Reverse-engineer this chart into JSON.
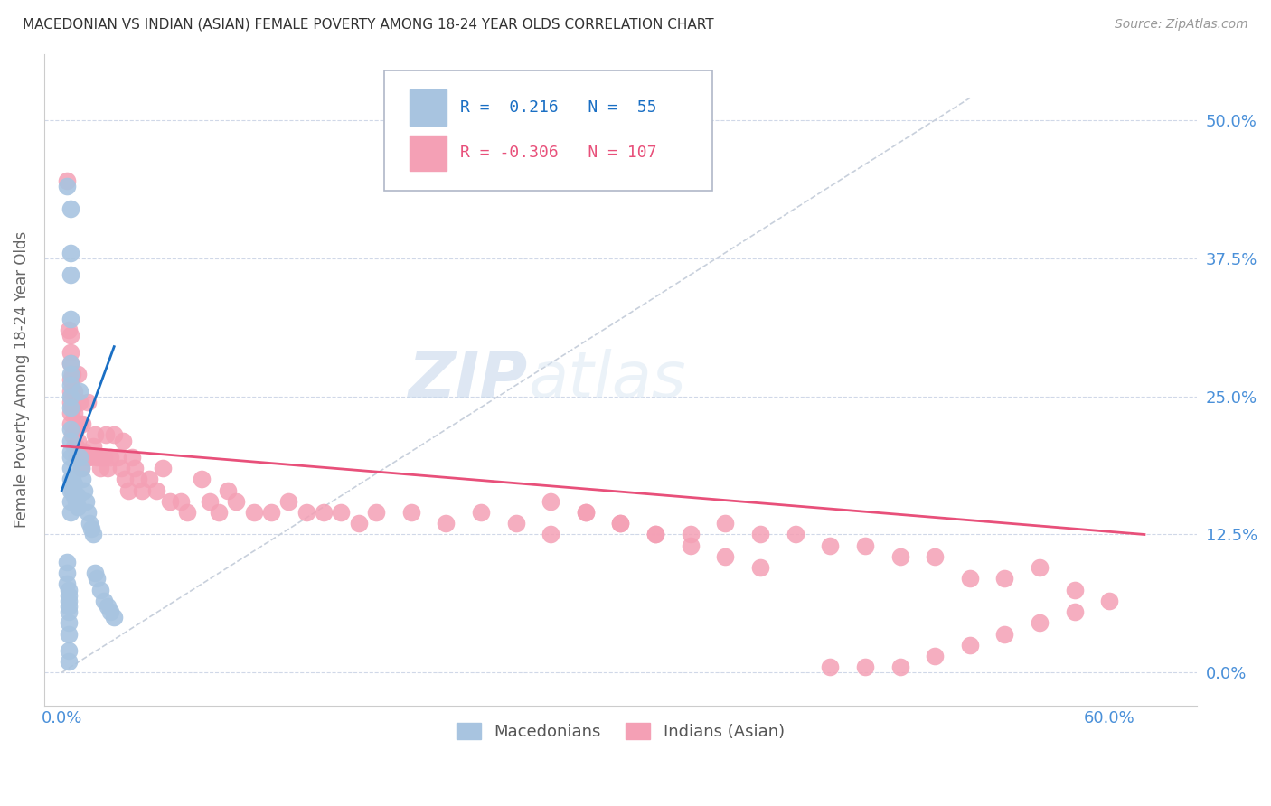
{
  "title": "MACEDONIAN VS INDIAN (ASIAN) FEMALE POVERTY AMONG 18-24 YEAR OLDS CORRELATION CHART",
  "source": "Source: ZipAtlas.com",
  "xlabel_ticks": [
    "0.0%",
    "60.0%"
  ],
  "xlabel_tick_vals": [
    0.0,
    0.6
  ],
  "ylabel_ticks": [
    "0.0%",
    "12.5%",
    "25.0%",
    "37.5%",
    "50.0%"
  ],
  "ylabel_tick_vals": [
    0.0,
    0.125,
    0.25,
    0.375,
    0.5
  ],
  "xlim": [
    -0.01,
    0.65
  ],
  "ylim": [
    -0.03,
    0.56
  ],
  "ylabel": "Female Poverty Among 18-24 Year Olds",
  "legend1_label": "Macedonians",
  "legend2_label": "Indians (Asian)",
  "r1": 0.216,
  "n1": 55,
  "r2": -0.306,
  "n2": 107,
  "color_mac": "#a8c4e0",
  "color_ind": "#f4a0b5",
  "trendline_mac_color": "#1a6fc4",
  "trendline_ind_color": "#e8507a",
  "diagonal_color": "#c8d0dc",
  "watermark_zip": "ZIP",
  "watermark_atlas": "atlas",
  "mac_x": [
    0.003,
    0.005,
    0.005,
    0.005,
    0.005,
    0.005,
    0.005,
    0.005,
    0.005,
    0.005,
    0.005,
    0.005,
    0.005,
    0.005,
    0.005,
    0.005,
    0.005,
    0.005,
    0.005,
    0.006,
    0.006,
    0.007,
    0.007,
    0.008,
    0.009,
    0.009,
    0.01,
    0.01,
    0.011,
    0.012,
    0.013,
    0.014,
    0.015,
    0.016,
    0.017,
    0.018,
    0.019,
    0.02,
    0.022,
    0.024,
    0.026,
    0.028,
    0.03,
    0.003,
    0.003,
    0.003,
    0.004,
    0.004,
    0.004,
    0.004,
    0.004,
    0.004,
    0.004,
    0.004,
    0.004
  ],
  "mac_y": [
    0.44,
    0.42,
    0.38,
    0.36,
    0.32,
    0.28,
    0.27,
    0.26,
    0.25,
    0.24,
    0.22,
    0.21,
    0.2,
    0.195,
    0.185,
    0.175,
    0.165,
    0.155,
    0.145,
    0.175,
    0.165,
    0.17,
    0.16,
    0.155,
    0.16,
    0.15,
    0.255,
    0.195,
    0.185,
    0.175,
    0.165,
    0.155,
    0.145,
    0.135,
    0.13,
    0.125,
    0.09,
    0.085,
    0.075,
    0.065,
    0.06,
    0.055,
    0.05,
    0.1,
    0.09,
    0.08,
    0.075,
    0.07,
    0.065,
    0.06,
    0.055,
    0.045,
    0.035,
    0.02,
    0.01
  ],
  "ind_x": [
    0.003,
    0.004,
    0.005,
    0.005,
    0.005,
    0.005,
    0.005,
    0.005,
    0.005,
    0.005,
    0.006,
    0.006,
    0.006,
    0.007,
    0.007,
    0.007,
    0.008,
    0.008,
    0.008,
    0.009,
    0.009,
    0.01,
    0.01,
    0.01,
    0.011,
    0.012,
    0.012,
    0.013,
    0.014,
    0.015,
    0.015,
    0.016,
    0.018,
    0.019,
    0.02,
    0.022,
    0.022,
    0.024,
    0.025,
    0.026,
    0.028,
    0.03,
    0.032,
    0.034,
    0.035,
    0.036,
    0.038,
    0.04,
    0.042,
    0.044,
    0.046,
    0.05,
    0.054,
    0.058,
    0.062,
    0.068,
    0.072,
    0.08,
    0.085,
    0.09,
    0.095,
    0.1,
    0.11,
    0.12,
    0.13,
    0.14,
    0.15,
    0.16,
    0.17,
    0.18,
    0.2,
    0.22,
    0.24,
    0.26,
    0.28,
    0.3,
    0.32,
    0.34,
    0.36,
    0.38,
    0.4,
    0.42,
    0.44,
    0.46,
    0.48,
    0.5,
    0.52,
    0.54,
    0.56,
    0.58,
    0.6,
    0.58,
    0.56,
    0.54,
    0.52,
    0.5,
    0.48,
    0.46,
    0.44,
    0.28,
    0.3,
    0.32,
    0.34,
    0.36,
    0.38,
    0.4
  ],
  "ind_y": [
    0.445,
    0.31,
    0.305,
    0.29,
    0.28,
    0.265,
    0.255,
    0.245,
    0.235,
    0.225,
    0.27,
    0.24,
    0.215,
    0.255,
    0.235,
    0.205,
    0.22,
    0.205,
    0.195,
    0.27,
    0.21,
    0.245,
    0.225,
    0.195,
    0.185,
    0.225,
    0.195,
    0.2,
    0.195,
    0.245,
    0.195,
    0.195,
    0.205,
    0.215,
    0.195,
    0.195,
    0.185,
    0.195,
    0.215,
    0.185,
    0.195,
    0.215,
    0.195,
    0.185,
    0.21,
    0.175,
    0.165,
    0.195,
    0.185,
    0.175,
    0.165,
    0.175,
    0.165,
    0.185,
    0.155,
    0.155,
    0.145,
    0.175,
    0.155,
    0.145,
    0.165,
    0.155,
    0.145,
    0.145,
    0.155,
    0.145,
    0.145,
    0.145,
    0.135,
    0.145,
    0.145,
    0.135,
    0.145,
    0.135,
    0.125,
    0.145,
    0.135,
    0.125,
    0.125,
    0.135,
    0.125,
    0.125,
    0.115,
    0.115,
    0.105,
    0.105,
    0.085,
    0.085,
    0.095,
    0.075,
    0.065,
    0.055,
    0.045,
    0.035,
    0.025,
    0.015,
    0.005,
    0.005,
    0.005,
    0.155,
    0.145,
    0.135,
    0.125,
    0.115,
    0.105,
    0.095
  ]
}
